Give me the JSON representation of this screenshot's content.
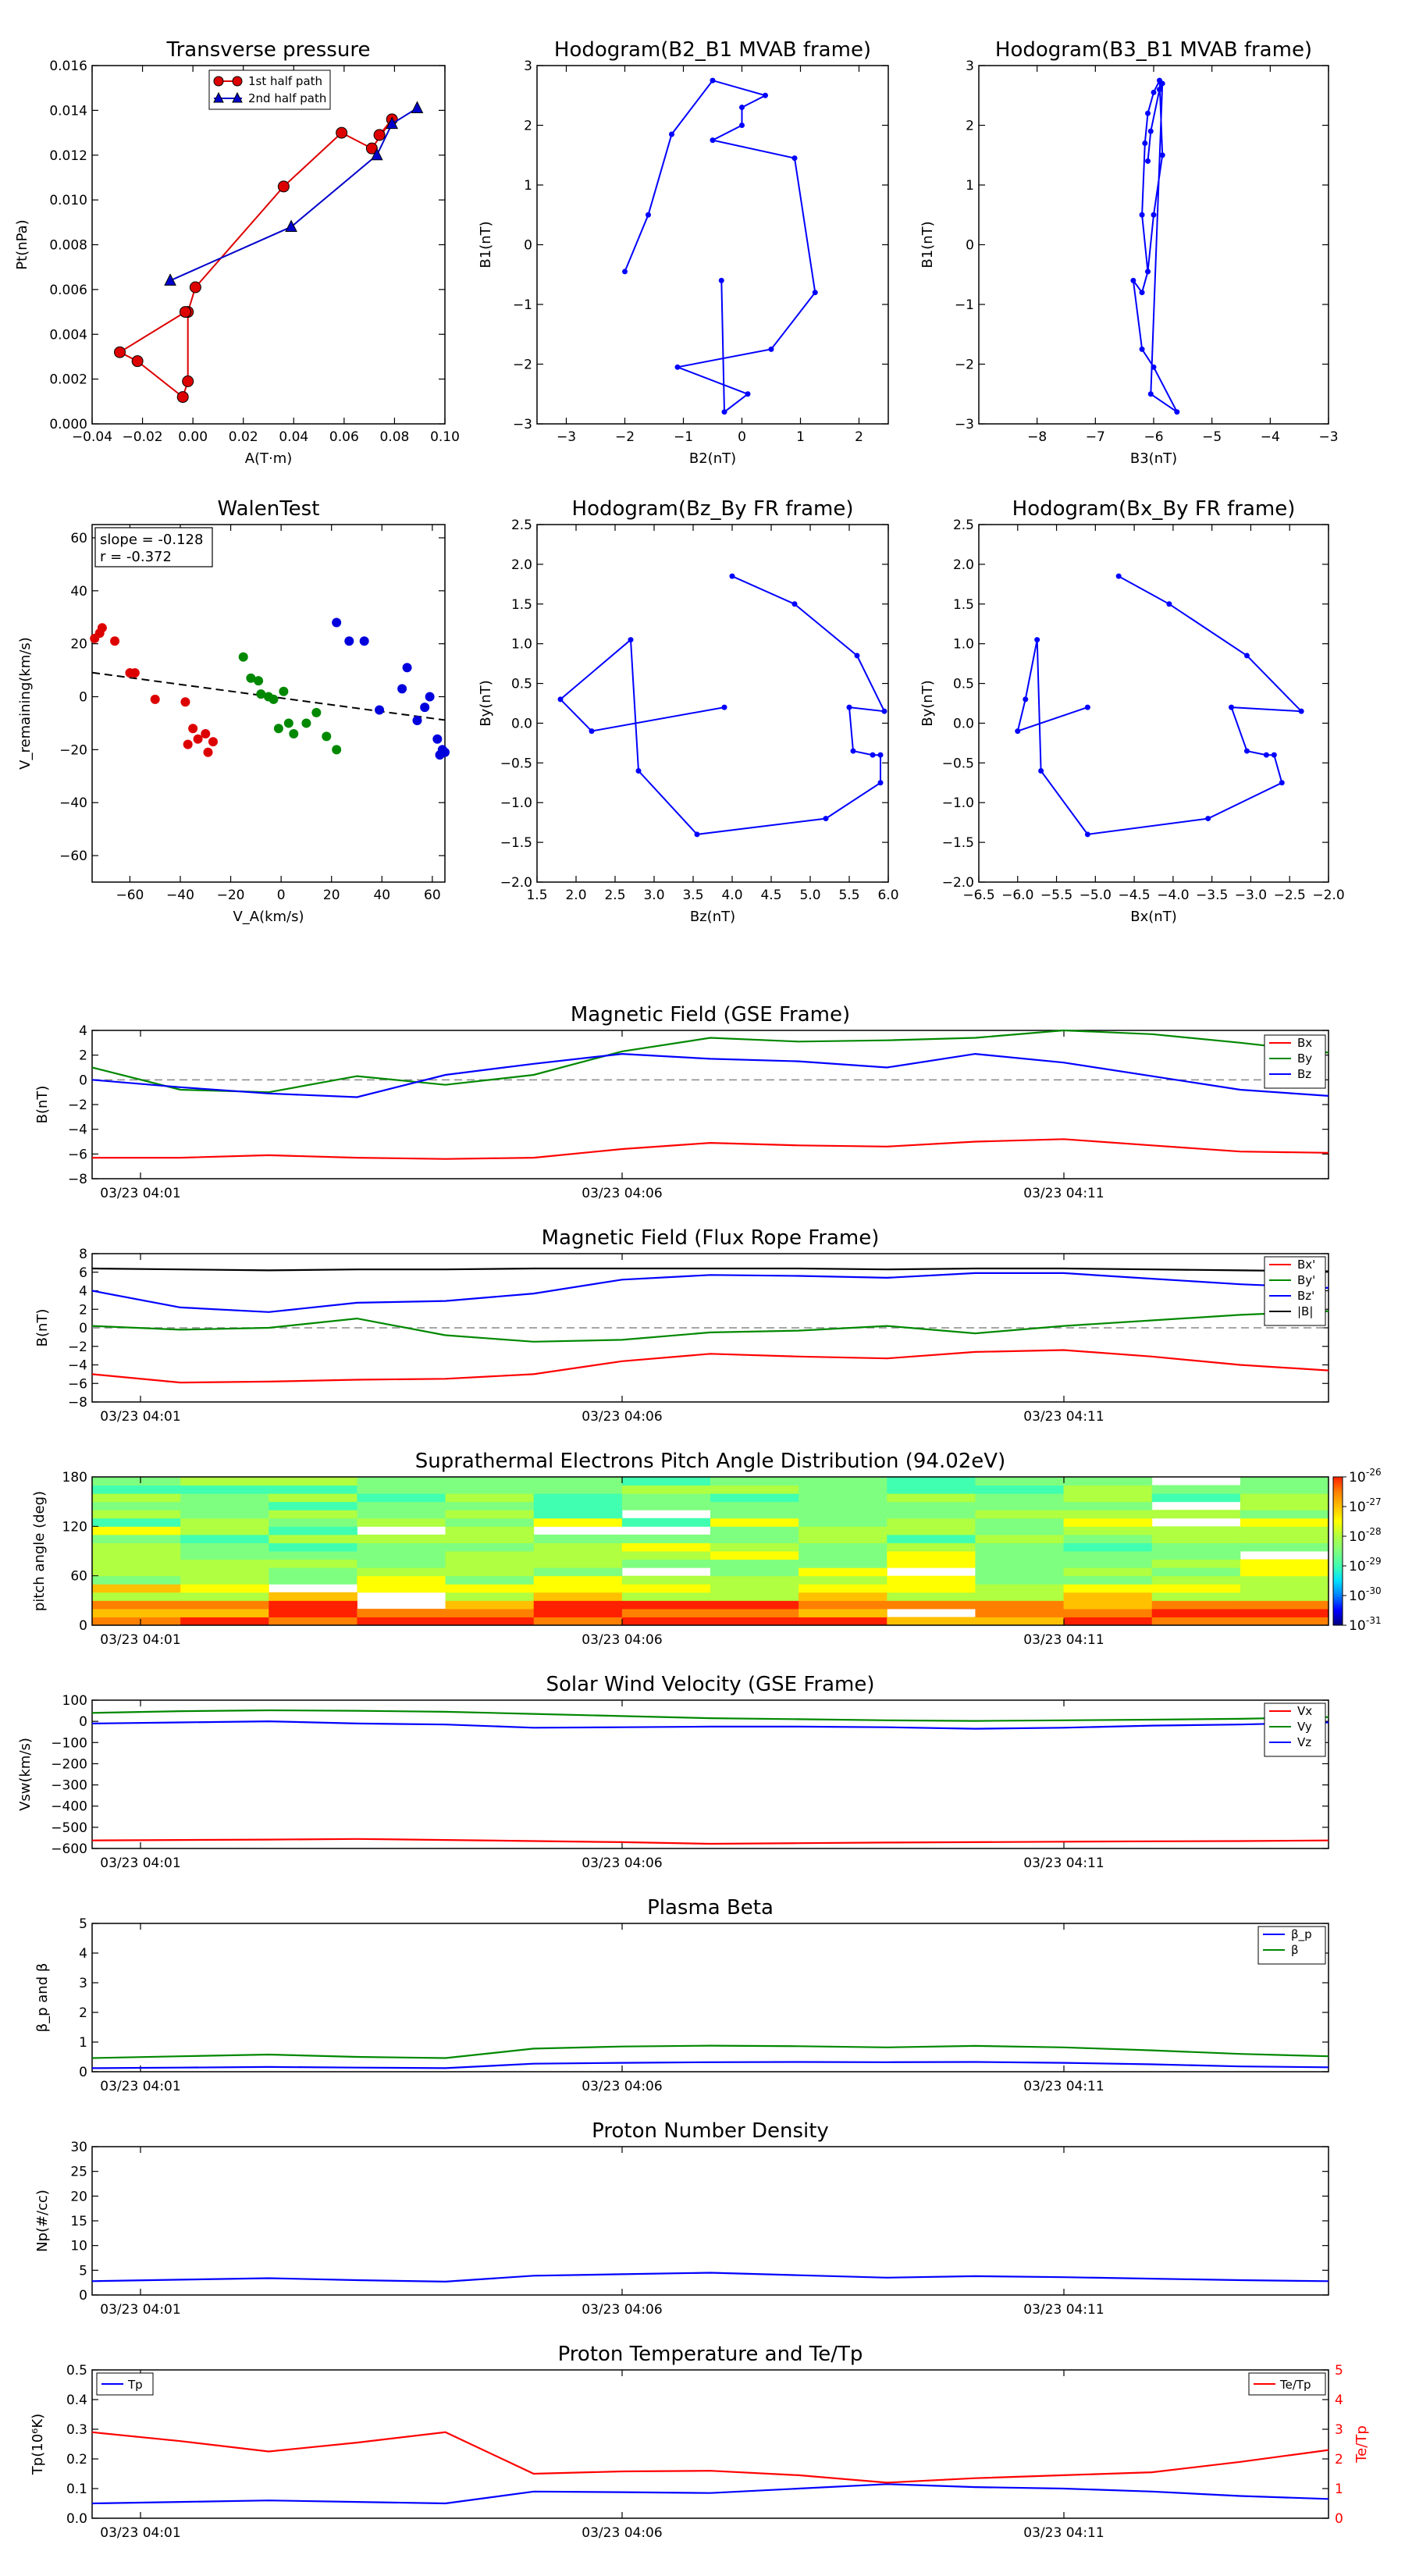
{
  "chart_data": [
    {
      "id": "pt",
      "type": "scatter",
      "title": "Transverse pressure",
      "xlabel": "A(T·m)",
      "ylabel": "Pt(nPa)",
      "xlim": [
        -0.04,
        0.1
      ],
      "ylim": [
        0,
        0.016
      ],
      "xticks": [
        "−0.04",
        "−0.02",
        "0.00",
        "0.02",
        "0.04",
        "0.06",
        "0.08",
        "0.10"
      ],
      "yticks": [
        "0.000",
        "0.002",
        "0.004",
        "0.006",
        "0.008",
        "0.010",
        "0.012",
        "0.014",
        "0.016"
      ],
      "legend_position": "top-center",
      "series": [
        {
          "name": "1st half path",
          "color": "#dd0000",
          "marker": "circle",
          "x": [
            0.074,
            0.079,
            0.071,
            0.059,
            0.036,
            0.001,
            -0.002,
            -0.002,
            -0.004,
            -0.022,
            -0.029,
            -0.003
          ],
          "y": [
            0.0129,
            0.0136,
            0.0123,
            0.013,
            0.0106,
            0.0061,
            0.005,
            0.0019,
            0.0012,
            0.0028,
            0.0032,
            0.005
          ]
        },
        {
          "name": "2nd half path",
          "color": "#0000cc",
          "marker": "triangle",
          "x": [
            0.089,
            0.079,
            0.073,
            0.039,
            -0.009
          ],
          "y": [
            0.0141,
            0.0134,
            0.012,
            0.0088,
            0.0064
          ]
        }
      ]
    },
    {
      "id": "h21",
      "type": "line",
      "title": "Hodogram(B2_B1 MVAB frame)",
      "xlabel": "B2(nT)",
      "ylabel": "B1(nT)",
      "xlim": [
        -3.5,
        2.5
      ],
      "ylim": [
        -3,
        3
      ],
      "xticks": [
        "−3",
        "−2",
        "−1",
        "0",
        "1",
        "2"
      ],
      "yticks": [
        "−3",
        "−2",
        "−1",
        "0",
        "1",
        "2",
        "3"
      ],
      "series": [
        {
          "name": "",
          "color": "#0000ff",
          "x": [
            -2.0,
            -1.6,
            -1.2,
            -0.5,
            0.4,
            0.0,
            0.0,
            -0.5,
            0.9,
            1.25,
            0.5,
            -1.1,
            0.1,
            -0.3,
            -0.35
          ],
          "y": [
            -0.45,
            0.5,
            1.85,
            2.75,
            2.5,
            2.3,
            2.0,
            1.75,
            1.45,
            -0.8,
            -1.75,
            -2.05,
            -2.5,
            -2.8,
            -0.6
          ]
        }
      ]
    },
    {
      "id": "h31",
      "type": "line",
      "title": "Hodogram(B3_B1 MVAB frame)",
      "xlabel": "B3(nT)",
      "ylabel": "B1(nT)",
      "xlim": [
        -9,
        -3
      ],
      "ylim": [
        -3,
        3
      ],
      "xticks": [
        "−8",
        "−7",
        "−6",
        "−5",
        "−4",
        "−3"
      ],
      "yticks": [
        "−3",
        "−2",
        "−1",
        "0",
        "1",
        "2",
        "3"
      ],
      "series": [
        {
          "name": "",
          "color": "#0000ff",
          "x": [
            -6.1,
            -6.0,
            -5.85,
            -5.9,
            -6.0,
            -6.1,
            -6.15,
            -6.2,
            -6.1,
            -6.2,
            -6.35,
            -6.2,
            -6.0,
            -5.6,
            -6.05,
            -5.85,
            -5.9,
            -6.05,
            -6.1
          ],
          "y": [
            -0.45,
            0.5,
            1.5,
            2.75,
            2.55,
            2.2,
            1.7,
            0.5,
            -0.45,
            -0.8,
            -0.6,
            -1.75,
            -2.05,
            -2.8,
            -2.5,
            2.7,
            2.6,
            1.9,
            1.4
          ]
        }
      ]
    },
    {
      "id": "walen",
      "type": "scatter",
      "title": "WalenTest",
      "xlabel": "V_A(km/s)",
      "ylabel": "V_remaining(km/s)",
      "xlim": [
        -75,
        65
      ],
      "ylim": [
        -70,
        65
      ],
      "xticks": [
        "−60",
        "−40",
        "−20",
        "0",
        "20",
        "40",
        "60"
      ],
      "yticks": [
        "−60",
        "−40",
        "−20",
        "0",
        "20",
        "40",
        "60"
      ],
      "annotations": [
        "slope = -0.128",
        "r = -0.372"
      ],
      "fit": {
        "slope": -0.128,
        "intercept": -0.5,
        "color": "#000000"
      },
      "series": [
        {
          "name": "",
          "color": "#dd0000",
          "x": [
            -74,
            -72,
            -71,
            -66,
            -60,
            -58,
            -50,
            -38,
            -37,
            -35,
            -33,
            -30,
            -29,
            -27
          ],
          "y": [
            22,
            24,
            26,
            21,
            9,
            9,
            -1,
            -2,
            -18,
            -12,
            -16,
            -14,
            -21,
            -17
          ]
        },
        {
          "name": "",
          "color": "#008800",
          "x": [
            -15,
            -12,
            -9,
            -8,
            -5,
            -3,
            -1,
            1,
            3,
            5,
            10,
            14,
            18,
            22
          ],
          "y": [
            15,
            7,
            6,
            1,
            0,
            -1,
            -12,
            2,
            -10,
            -14,
            -10,
            -6,
            -15,
            -20
          ]
        },
        {
          "name": "",
          "color": "#0000dd",
          "x": [
            22,
            27,
            33,
            39,
            48,
            50,
            54,
            57,
            59,
            62,
            63,
            64,
            65
          ],
          "y": [
            28,
            21,
            21,
            -5,
            3,
            11,
            -9,
            -4,
            0,
            -16,
            -22,
            -20,
            -21
          ]
        }
      ]
    },
    {
      "id": "hzy",
      "type": "line",
      "title": "Hodogram(Bz_By FR frame)",
      "xlabel": "Bz(nT)",
      "ylabel": "By(nT)",
      "xlim": [
        1.5,
        6.0
      ],
      "ylim": [
        -2.0,
        2.5
      ],
      "xticks": [
        "1.5",
        "2.0",
        "2.5",
        "3.0",
        "3.5",
        "4.0",
        "4.5",
        "5.0",
        "5.5",
        "6.0"
      ],
      "yticks": [
        "−2.0",
        "−1.5",
        "−1.0",
        "−0.5",
        "0.0",
        "0.5",
        "1.0",
        "1.5",
        "2.0",
        "2.5"
      ],
      "series": [
        {
          "name": "",
          "color": "#0000ff",
          "x": [
            3.9,
            2.2,
            1.8,
            2.7,
            2.8,
            3.55,
            5.2,
            5.9,
            5.9,
            5.8,
            5.55,
            5.5,
            5.95,
            5.6,
            4.8,
            4.0
          ],
          "y": [
            0.2,
            -0.1,
            0.3,
            1.05,
            -0.6,
            -1.4,
            -1.2,
            -0.75,
            -0.4,
            -0.4,
            -0.35,
            0.2,
            0.15,
            0.85,
            1.5,
            1.85
          ]
        }
      ]
    },
    {
      "id": "hxy",
      "type": "line",
      "title": "Hodogram(Bx_By FR frame)",
      "xlabel": "Bx(nT)",
      "ylabel": "By(nT)",
      "xlim": [
        -6.5,
        -2.0
      ],
      "ylim": [
        -2.0,
        2.5
      ],
      "xticks": [
        "−6.5",
        "−6.0",
        "−5.5",
        "−5.0",
        "−4.5",
        "−4.0",
        "−3.5",
        "−3.0",
        "−2.5",
        "−2.0"
      ],
      "yticks": [
        "−2.0",
        "−1.5",
        "−1.0",
        "−0.5",
        "0.0",
        "0.5",
        "1.0",
        "1.5",
        "2.0",
        "2.5"
      ],
      "series": [
        {
          "name": "",
          "color": "#0000ff",
          "x": [
            -5.1,
            -6.0,
            -5.9,
            -5.75,
            -5.7,
            -5.1,
            -3.55,
            -2.6,
            -2.7,
            -2.8,
            -3.05,
            -3.25,
            -2.35,
            -3.05,
            -4.05,
            -4.7
          ],
          "y": [
            0.2,
            -0.1,
            0.3,
            1.05,
            -0.6,
            -1.4,
            -1.2,
            -0.75,
            -0.4,
            -0.4,
            -0.35,
            0.2,
            0.15,
            0.85,
            1.5,
            1.85
          ]
        }
      ]
    },
    {
      "id": "bgse",
      "type": "line",
      "title": "Magnetic Field (GSE Frame)",
      "ylabel": "B(nT)",
      "ylim": [
        -8,
        4
      ],
      "yticks": [
        "−8",
        "−6",
        "−4",
        "−2",
        "0",
        "2",
        "4"
      ],
      "xticks": [
        "03/23 04:01",
        "03/23 04:06",
        "03/23 04:11"
      ],
      "x": [
        0,
        1,
        2,
        3,
        4,
        5,
        6,
        7,
        8,
        9,
        10,
        11,
        12,
        13,
        14
      ],
      "x_unit_note": "",
      "legend_position": "top-right",
      "series": [
        {
          "name": "Bx",
          "color": "#ff0000",
          "values": [
            -6.3,
            -6.3,
            -6.1,
            -6.3,
            -6.4,
            -6.3,
            -5.6,
            -5.1,
            -5.3,
            -5.4,
            -5.0,
            -4.8,
            -5.3,
            -5.8,
            -5.9
          ]
        },
        {
          "name": "By",
          "color": "#008800",
          "values": [
            1.0,
            -0.8,
            -1.0,
            0.3,
            -0.4,
            0.4,
            2.3,
            3.4,
            3.1,
            3.2,
            3.4,
            4.0,
            3.7,
            3.0,
            2.2
          ]
        },
        {
          "name": "Bz",
          "color": "#0000ff",
          "values": [
            0.0,
            -0.6,
            -1.1,
            -1.4,
            0.4,
            1.3,
            2.1,
            1.7,
            1.5,
            1.0,
            2.1,
            1.4,
            0.3,
            -0.8,
            -1.3
          ]
        }
      ]
    },
    {
      "id": "bfr",
      "type": "line",
      "title": "Magnetic Field (Flux Rope Frame)",
      "ylabel": "B(nT)",
      "ylim": [
        -8,
        8
      ],
      "yticks": [
        "−8",
        "−6",
        "−4",
        "−2",
        "0",
        "2",
        "4",
        "6",
        "8"
      ],
      "xticks": [
        "03/23 04:01",
        "03/23 04:06",
        "03/23 04:11"
      ],
      "x": [
        0,
        1,
        2,
        3,
        4,
        5,
        6,
        7,
        8,
        9,
        10,
        11,
        12,
        13,
        14
      ],
      "legend_position": "top-right",
      "series": [
        {
          "name": "Bx'",
          "color": "#ff0000",
          "values": [
            -5.0,
            -5.9,
            -5.8,
            -5.6,
            -5.5,
            -5.0,
            -3.6,
            -2.8,
            -3.1,
            -3.3,
            -2.6,
            -2.4,
            -3.1,
            -4.0,
            -4.6
          ]
        },
        {
          "name": "By'",
          "color": "#008800",
          "values": [
            0.2,
            -0.2,
            0.0,
            1.0,
            -0.8,
            -1.5,
            -1.3,
            -0.5,
            -0.3,
            0.2,
            -0.6,
            0.2,
            0.8,
            1.4,
            1.8
          ]
        },
        {
          "name": "Bz'",
          "color": "#0000ff",
          "values": [
            4.0,
            2.2,
            1.7,
            2.7,
            2.9,
            3.7,
            5.2,
            5.7,
            5.6,
            5.4,
            5.9,
            5.9,
            5.3,
            4.7,
            4.3
          ]
        },
        {
          "name": "|B|",
          "color": "#000000",
          "values": [
            6.4,
            6.3,
            6.2,
            6.3,
            6.3,
            6.4,
            6.4,
            6.4,
            6.4,
            6.3,
            6.4,
            6.4,
            6.3,
            6.2,
            6.1
          ]
        }
      ]
    },
    {
      "id": "pad",
      "type": "heatmap",
      "title": "Suprathermal Electrons Pitch Angle Distribution (94.02eV)",
      "ylabel": "pitch angle (deg)",
      "ylim": [
        0,
        180
      ],
      "yticks": [
        "0",
        "60",
        "120",
        "180"
      ],
      "xticks": [
        "03/23 04:01",
        "03/23 04:06",
        "03/23 04:11"
      ],
      "colorbar_ticks": [
        "10",
        "10",
        "10",
        "10",
        "10",
        "10"
      ],
      "colorbar_exponents": [
        "-26",
        "-27",
        "-28",
        "-29",
        "-30",
        "-31"
      ],
      "colorbar_range_log10": [
        -31,
        -26
      ]
    },
    {
      "id": "vsw",
      "type": "line",
      "title": "Solar Wind Velocity (GSE Frame)",
      "ylabel": "Vsw(km/s)",
      "ylim": [
        -600,
        100
      ],
      "yticks": [
        "−600",
        "−500",
        "−400",
        "−300",
        "−200",
        "−100",
        "0",
        "100"
      ],
      "xticks": [
        "03/23 04:01",
        "03/23 04:06",
        "03/23 04:11"
      ],
      "x": [
        0,
        1,
        2,
        3,
        4,
        5,
        6,
        7,
        8,
        9,
        10,
        11,
        12,
        13,
        14
      ],
      "legend_position": "top-right",
      "series": [
        {
          "name": "Vx",
          "color": "#ff0000",
          "values": [
            -562,
            -560,
            -558,
            -555,
            -560,
            -565,
            -570,
            -578,
            -575,
            -572,
            -570,
            -568,
            -566,
            -565,
            -562
          ]
        },
        {
          "name": "Vy",
          "color": "#008800",
          "values": [
            40,
            48,
            52,
            50,
            45,
            35,
            25,
            15,
            10,
            5,
            2,
            5,
            8,
            12,
            20
          ]
        },
        {
          "name": "Vz",
          "color": "#0000ff",
          "values": [
            -10,
            -5,
            0,
            -10,
            -15,
            -30,
            -28,
            -25,
            -25,
            -28,
            -35,
            -30,
            -20,
            -15,
            -5
          ]
        }
      ]
    },
    {
      "id": "beta",
      "type": "line",
      "title": "Plasma Beta",
      "ylabel": "β_p and β",
      "ylim": [
        0,
        5
      ],
      "yticks": [
        "0",
        "1",
        "2",
        "3",
        "4",
        "5"
      ],
      "xticks": [
        "03/23 04:01",
        "03/23 04:06",
        "03/23 04:11"
      ],
      "x": [
        0,
        1,
        2,
        3,
        4,
        5,
        6,
        7,
        8,
        9,
        10,
        11,
        12,
        13,
        14
      ],
      "legend_position": "top-right",
      "series": [
        {
          "name": "β_p",
          "color": "#0000ff",
          "values": [
            0.12,
            0.14,
            0.16,
            0.14,
            0.12,
            0.27,
            0.3,
            0.32,
            0.33,
            0.32,
            0.33,
            0.3,
            0.25,
            0.18,
            0.15
          ]
        },
        {
          "name": "β",
          "color": "#008800",
          "values": [
            0.46,
            0.52,
            0.58,
            0.5,
            0.46,
            0.78,
            0.85,
            0.88,
            0.86,
            0.82,
            0.87,
            0.82,
            0.72,
            0.6,
            0.52
          ]
        }
      ]
    },
    {
      "id": "np",
      "type": "line",
      "title": "Proton Number Density",
      "ylabel": "Np(#/cc)",
      "ylim": [
        0,
        30
      ],
      "yticks": [
        "0",
        "5",
        "10",
        "15",
        "20",
        "25",
        "30"
      ],
      "xticks": [
        "03/23 04:01",
        "03/23 04:06",
        "03/23 04:11"
      ],
      "x": [
        0,
        1,
        2,
        3,
        4,
        5,
        6,
        7,
        8,
        9,
        10,
        11,
        12,
        13,
        14
      ],
      "series": [
        {
          "name": "",
          "color": "#0000ff",
          "values": [
            2.8,
            3.1,
            3.4,
            3.0,
            2.7,
            3.9,
            4.2,
            4.5,
            4.0,
            3.5,
            3.8,
            3.6,
            3.3,
            3.0,
            2.8
          ]
        }
      ]
    },
    {
      "id": "tp",
      "type": "line",
      "title": "Proton Temperature and Te/Tp",
      "ylabel": "Tp(10⁶K)",
      "ylabel_right": "Te/Tp",
      "ylim": [
        0,
        0.5
      ],
      "ylim_right": [
        0,
        5
      ],
      "yticks": [
        "0.0",
        "0.1",
        "0.2",
        "0.3",
        "0.4",
        "0.5"
      ],
      "yticks_right": [
        "0",
        "1",
        "2",
        "3",
        "4",
        "5"
      ],
      "xticks": [
        "03/23 04:01",
        "03/23 04:06",
        "03/23 04:11"
      ],
      "x": [
        0,
        1,
        2,
        3,
        4,
        5,
        6,
        7,
        8,
        9,
        10,
        11,
        12,
        13,
        14
      ],
      "series": [
        {
          "name": "Tp",
          "color": "#0000ff",
          "axis": "left",
          "values": [
            0.05,
            0.055,
            0.06,
            0.055,
            0.05,
            0.09,
            0.088,
            0.085,
            0.1,
            0.115,
            0.105,
            0.1,
            0.09,
            0.075,
            0.065
          ]
        },
        {
          "name": "Te/Tp",
          "color": "#ff0000",
          "axis": "right",
          "values": [
            2.9,
            2.6,
            2.25,
            2.55,
            2.9,
            1.5,
            1.58,
            1.6,
            1.45,
            1.2,
            1.35,
            1.45,
            1.55,
            1.9,
            2.3
          ]
        }
      ]
    }
  ],
  "labels": {
    "ts_xtick_positions_note": ""
  }
}
